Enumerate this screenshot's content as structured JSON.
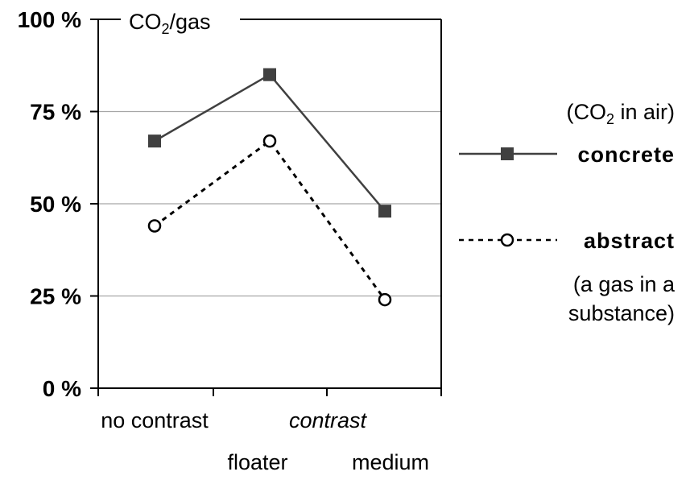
{
  "chart_data": {
    "type": "line",
    "title_main": "CO",
    "title_sub": "2",
    "title_rest": "/gas",
    "categories": [
      "no contrast",
      "floater",
      "medium"
    ],
    "x_group_label": "contrast",
    "yticks": [
      "100 %",
      "75 %",
      "50 %",
      "25 %",
      "0 %"
    ],
    "ylim": [
      0,
      100
    ],
    "grid": true,
    "series": [
      {
        "name": "concrete",
        "marker": "filled-square",
        "line": "solid",
        "color": "#404040",
        "values": [
          67,
          85,
          48
        ]
      },
      {
        "name": "abstract",
        "marker": "open-circle",
        "line": "dotted",
        "color": "#000000",
        "values": [
          44,
          67,
          24
        ]
      }
    ],
    "legend": {
      "concrete_note_a": "(CO",
      "concrete_note_sub": "2",
      "concrete_note_b": " in air)",
      "abstract_note_line1": "(a gas in a",
      "abstract_note_line2": "substance)"
    }
  }
}
